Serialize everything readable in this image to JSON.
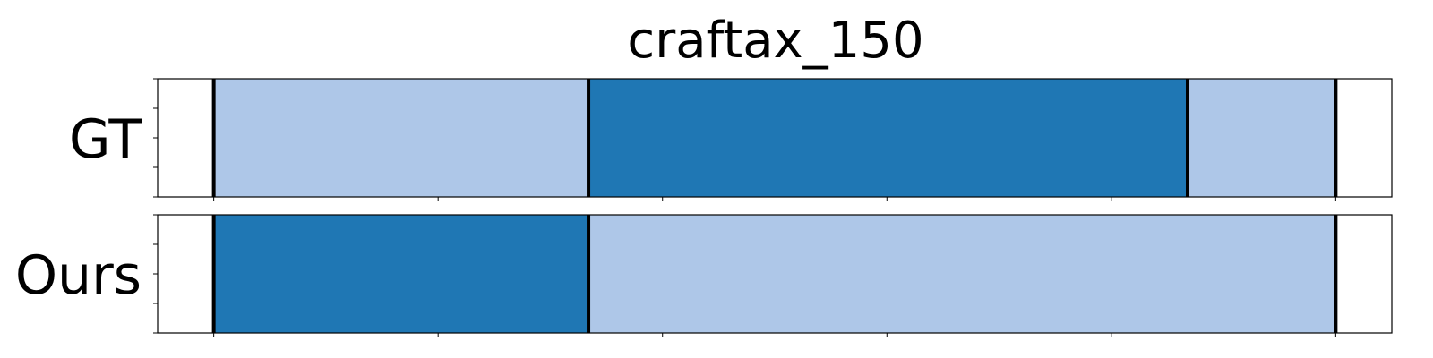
{
  "chart_data": {
    "type": "timeline-segmentation",
    "title": "craftax_150",
    "x_range": [
      -25,
      525
    ],
    "x_ticks": [
      0,
      100,
      200,
      300,
      400,
      500
    ],
    "tick_labels_shown": false,
    "rows": [
      {
        "label": "GT",
        "segments": [
          {
            "start": 0,
            "end": 167,
            "color": "#aec7e8"
          },
          {
            "start": 167,
            "end": 434,
            "color": "#1f77b4"
          },
          {
            "start": 434,
            "end": 500,
            "color": "#aec7e8"
          }
        ],
        "boundaries": [
          0,
          167,
          434,
          500
        ]
      },
      {
        "label": "Ours",
        "segments": [
          {
            "start": 0,
            "end": 167,
            "color": "#1f77b4"
          },
          {
            "start": 167,
            "end": 500,
            "color": "#aec7e8"
          }
        ],
        "boundaries": [
          0,
          167,
          500
        ]
      }
    ],
    "colors": {
      "light": "#aec7e8",
      "dark": "#1f77b4",
      "boundary": "#000000"
    }
  }
}
